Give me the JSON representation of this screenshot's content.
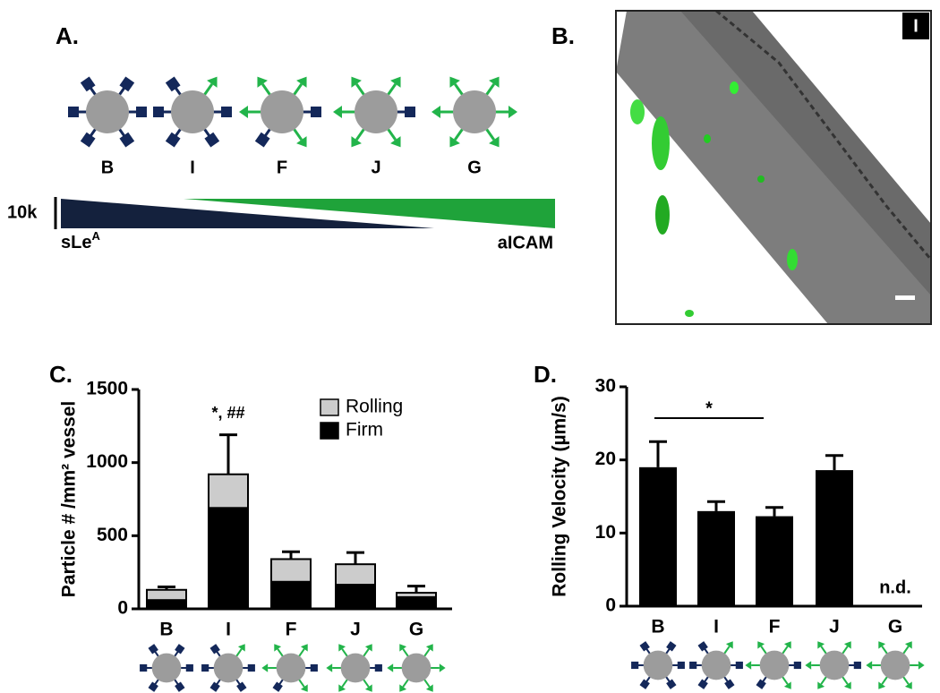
{
  "panels": {
    "a": "A.",
    "b": "B.",
    "c": "C.",
    "d": "D."
  },
  "diagram": {
    "particles": [
      "B",
      "I",
      "F",
      "J",
      "G"
    ],
    "scale": "10k",
    "left_label": "sLe",
    "left_sup": "A",
    "right_label": "aICAM"
  },
  "image": {
    "label": "I"
  },
  "chart_data": [
    {
      "type": "stacked_bar",
      "ylabel": "Particle # /mm² vessel",
      "categories": [
        "B",
        "I",
        "F",
        "J",
        "G"
      ],
      "series": [
        {
          "name": "Firm",
          "color": "#000000",
          "values": [
            60,
            690,
            185,
            165,
            80
          ]
        },
        {
          "name": "Rolling",
          "color": "#cccccc",
          "values": [
            70,
            230,
            155,
            140,
            30
          ],
          "errors": [
            20,
            270,
            50,
            80,
            45
          ]
        }
      ],
      "annotation": {
        "category": 1,
        "text": "*, ##"
      },
      "ylim": [
        0,
        1500
      ],
      "yticks": [
        0,
        500,
        1000,
        1500
      ],
      "legend": "top-right"
    },
    {
      "type": "bar",
      "ylabel": "Rolling Velocity (µm/s)",
      "categories": [
        "B",
        "I",
        "F",
        "J",
        "G"
      ],
      "values": [
        19,
        13,
        12.3,
        18.6,
        null
      ],
      "errors": [
        3.5,
        1.3,
        1.2,
        2,
        null
      ],
      "color": "#000000",
      "missing_label": "n.d.",
      "significance": {
        "from": 0,
        "to": 2,
        "text": "*"
      },
      "ylim": [
        0,
        30
      ],
      "yticks": [
        0,
        10,
        20,
        30
      ]
    }
  ]
}
